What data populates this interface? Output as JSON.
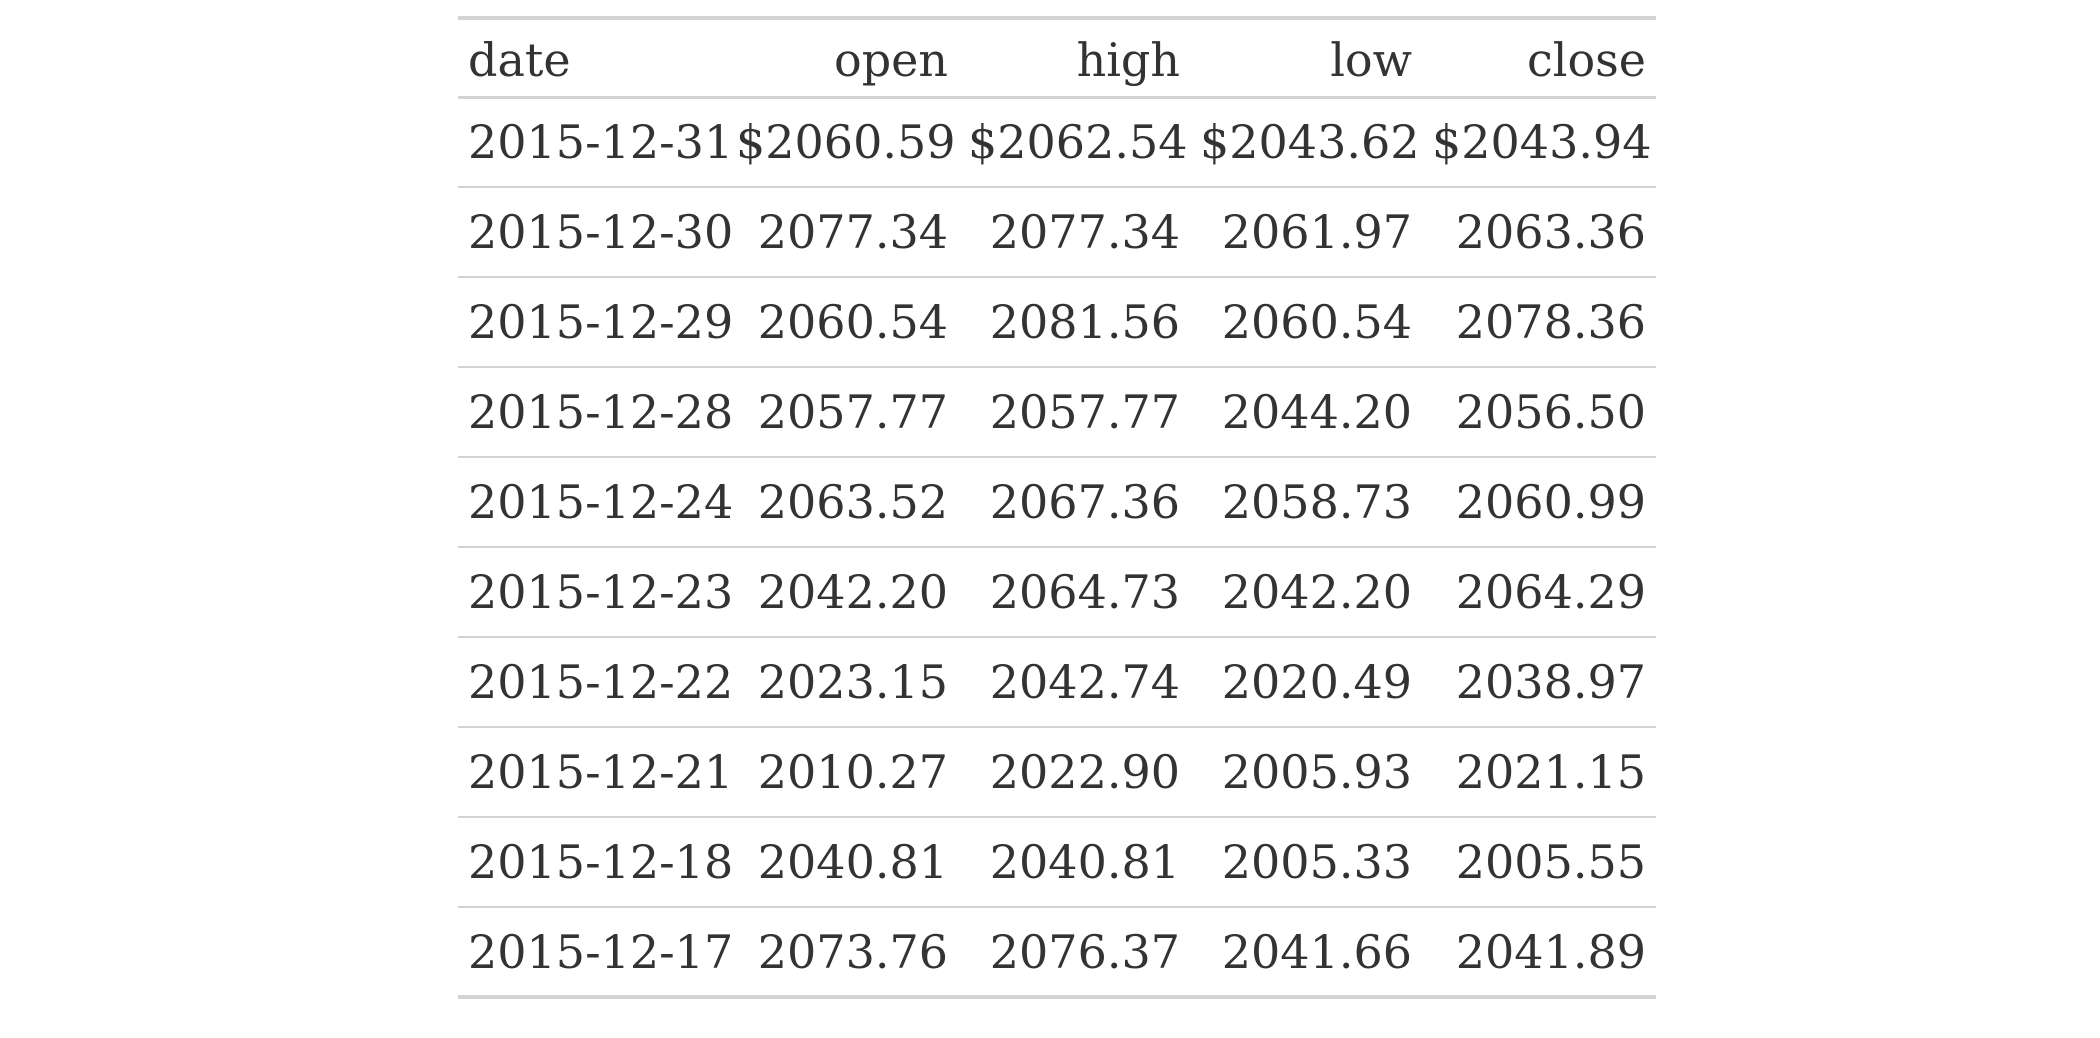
{
  "table": {
    "columns": [
      "date",
      "open",
      "high",
      "low",
      "close"
    ],
    "rows": [
      [
        "2015-12-31",
        "$2060.59",
        "$2062.54",
        "$2043.62",
        "$2043.94"
      ],
      [
        "2015-12-30",
        "2077.34",
        "2077.34",
        "2061.97",
        "2063.36"
      ],
      [
        "2015-12-29",
        "2060.54",
        "2081.56",
        "2060.54",
        "2078.36"
      ],
      [
        "2015-12-28",
        "2057.77",
        "2057.77",
        "2044.20",
        "2056.50"
      ],
      [
        "2015-12-24",
        "2063.52",
        "2067.36",
        "2058.73",
        "2060.99"
      ],
      [
        "2015-12-23",
        "2042.20",
        "2064.73",
        "2042.20",
        "2064.29"
      ],
      [
        "2015-12-22",
        "2023.15",
        "2042.74",
        "2020.49",
        "2038.97"
      ],
      [
        "2015-12-21",
        "2010.27",
        "2022.90",
        "2005.93",
        "2021.15"
      ],
      [
        "2015-12-18",
        "2040.81",
        "2040.81",
        "2005.33",
        "2005.55"
      ],
      [
        "2015-12-17",
        "2073.76",
        "2076.37",
        "2041.66",
        "2041.89"
      ]
    ]
  }
}
